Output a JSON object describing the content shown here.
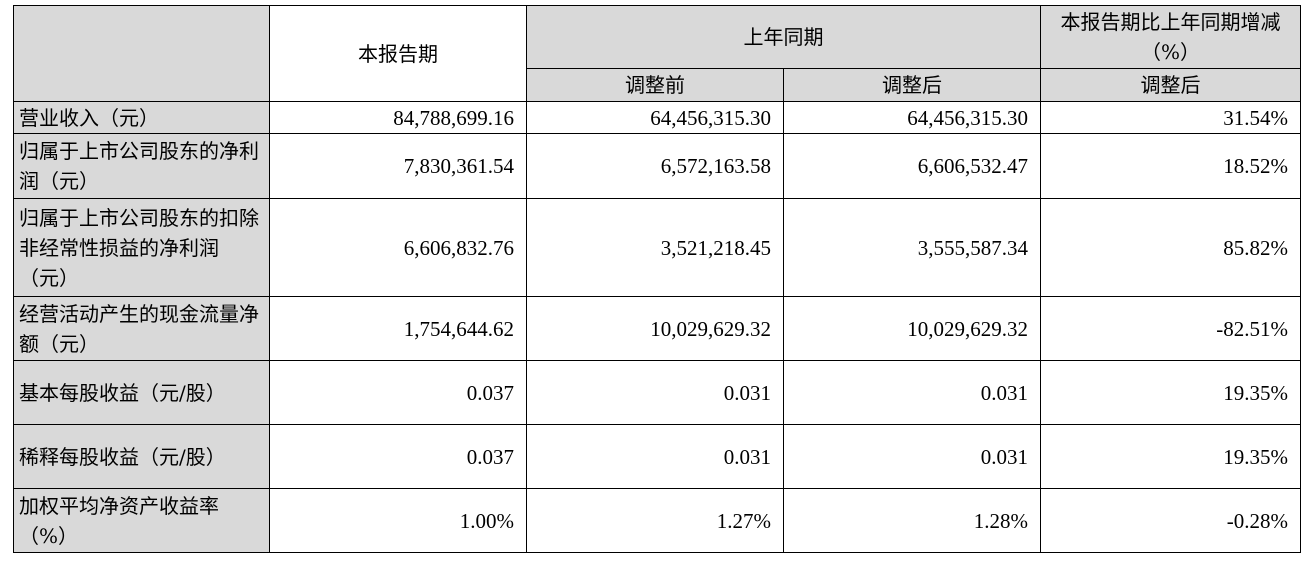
{
  "header": {
    "current_period": "本报告期",
    "prior_year_period": "上年同期",
    "change_pct": "本报告期比上年同期增减（%）",
    "before_adjustment": "调整前",
    "after_adjustment": "调整后",
    "change_after_adjustment": "调整后"
  },
  "rows": [
    {
      "label": "营业收入（元）",
      "current": "84,788,699.16",
      "before": "64,456,315.30",
      "after": "64,456,315.30",
      "change": "31.54%"
    },
    {
      "label": "归属于上市公司股东的净利润（元）",
      "current": "7,830,361.54",
      "before": "6,572,163.58",
      "after": "6,606,532.47",
      "change": "18.52%"
    },
    {
      "label": "归属于上市公司股东的扣除非经常性损益的净利润（元）",
      "current": "6,606,832.76",
      "before": "3,521,218.45",
      "after": "3,555,587.34",
      "change": "85.82%"
    },
    {
      "label": "经营活动产生的现金流量净额（元）",
      "current": "1,754,644.62",
      "before": "10,029,629.32",
      "after": "10,029,629.32",
      "change": "-82.51%"
    },
    {
      "label": "基本每股收益（元/股）",
      "current": "0.037",
      "before": "0.031",
      "after": "0.031",
      "change": "19.35%"
    },
    {
      "label": "稀释每股收益（元/股）",
      "current": "0.037",
      "before": "0.031",
      "after": "0.031",
      "change": "19.35%"
    },
    {
      "label": "加权平均净资产收益率（%）",
      "current": "1.00%",
      "before": "1.27%",
      "after": "1.28%",
      "change": "-0.28%"
    }
  ]
}
